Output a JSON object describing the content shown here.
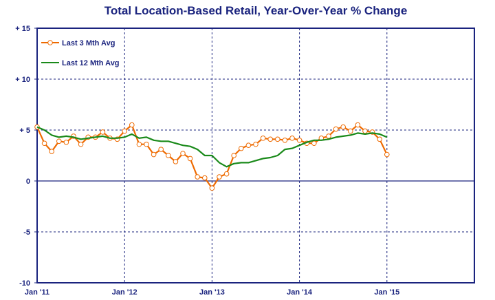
{
  "chart_data": {
    "type": "line",
    "title": "Total Location-Based Retail, Year-Over-Year % Change",
    "xlabel": "",
    "ylabel": "",
    "ylim": [
      -10,
      15
    ],
    "yticks": [
      15,
      10,
      5,
      0,
      -5,
      -10
    ],
    "ytick_labels": [
      "+ 15",
      "+ 10",
      "+ 5",
      "0",
      "-5",
      "-10"
    ],
    "xlim": [
      0,
      60
    ],
    "xticks": [
      0,
      12,
      24,
      36,
      48
    ],
    "xtick_labels": [
      "Jan '11",
      "Jan '12",
      "Jan '13",
      "Jan '14",
      "Jan '15"
    ],
    "grid": true,
    "legend_position": "top-left",
    "series": [
      {
        "name": "Last 3 Mth Avg",
        "color": "#ee6a00",
        "marker": "circle",
        "x": [
          0,
          1,
          2,
          3,
          4,
          5,
          6,
          7,
          8,
          9,
          10,
          11,
          12,
          13,
          14,
          15,
          16,
          17,
          18,
          19,
          20,
          21,
          22,
          23,
          24,
          25,
          26,
          27,
          28,
          29,
          30,
          31,
          32,
          33,
          34,
          35,
          36,
          37,
          38,
          39,
          40,
          41,
          42,
          43,
          44,
          45,
          46,
          47,
          48
        ],
        "values": [
          5.3,
          3.7,
          2.9,
          3.9,
          3.8,
          4.4,
          3.6,
          4.3,
          4.3,
          4.8,
          4.2,
          4.1,
          4.9,
          5.5,
          3.6,
          3.6,
          2.6,
          3.1,
          2.5,
          1.9,
          2.7,
          2.2,
          0.4,
          0.3,
          -0.7,
          0.4,
          0.7,
          2.5,
          3.2,
          3.5,
          3.6,
          4.2,
          4.1,
          4.1,
          4.0,
          4.2,
          4.0,
          3.7,
          3.7,
          4.2,
          4.4,
          5.1,
          5.3,
          4.9,
          5.5,
          4.9,
          4.8,
          4.1,
          2.6
        ]
      },
      {
        "name": "Last 12 Mth Avg",
        "color": "#1a8a1a",
        "marker": "none",
        "x": [
          0,
          1,
          2,
          3,
          4,
          5,
          6,
          7,
          8,
          9,
          10,
          11,
          12,
          13,
          14,
          15,
          16,
          17,
          18,
          19,
          20,
          21,
          22,
          23,
          24,
          25,
          26,
          27,
          28,
          29,
          30,
          31,
          32,
          33,
          34,
          35,
          36,
          37,
          38,
          39,
          40,
          41,
          42,
          43,
          44,
          45,
          46,
          47,
          48
        ],
        "values": [
          5.3,
          5.0,
          4.5,
          4.3,
          4.4,
          4.3,
          4.1,
          4.2,
          4.3,
          4.4,
          4.2,
          4.2,
          4.3,
          4.6,
          4.2,
          4.3,
          4.0,
          3.9,
          3.9,
          3.7,
          3.5,
          3.4,
          3.1,
          2.5,
          2.5,
          1.8,
          1.4,
          1.7,
          1.8,
          1.8,
          2.0,
          2.2,
          2.3,
          2.5,
          3.1,
          3.2,
          3.5,
          3.8,
          4.0,
          4.0,
          4.1,
          4.3,
          4.4,
          4.5,
          4.7,
          4.6,
          4.7,
          4.6,
          4.3
        ]
      }
    ]
  }
}
